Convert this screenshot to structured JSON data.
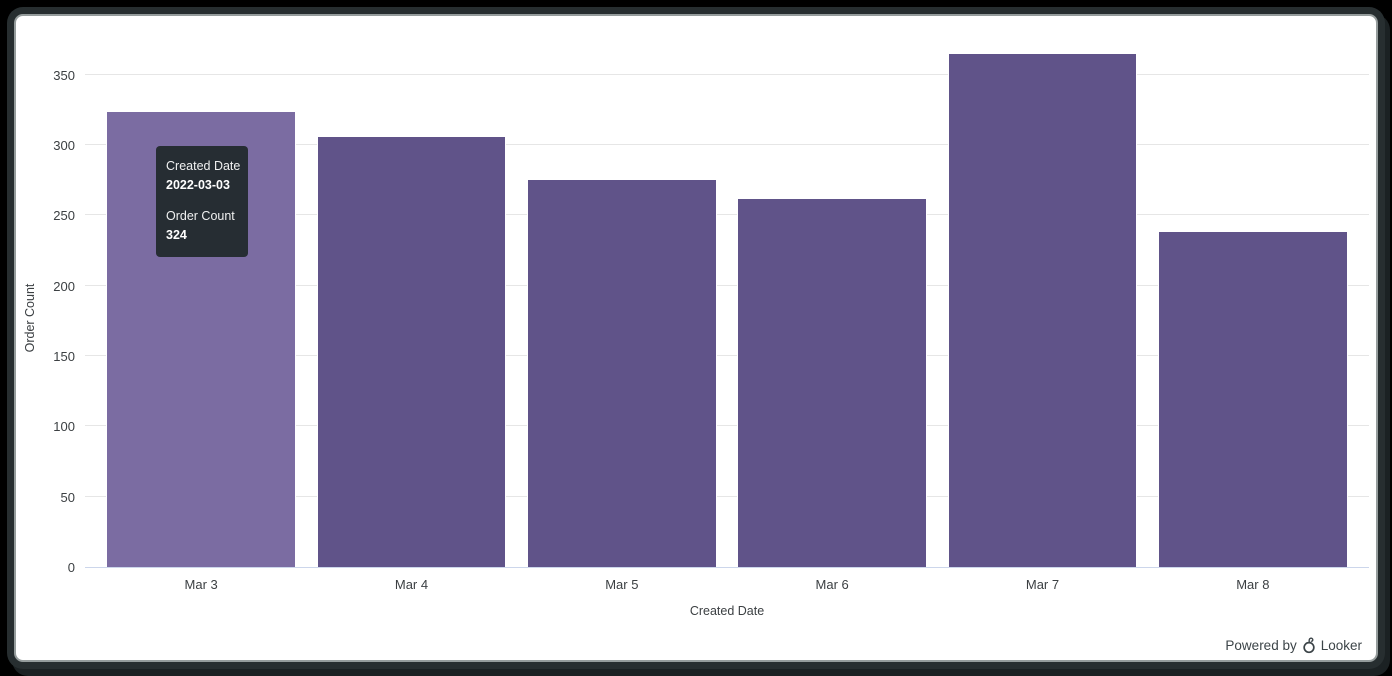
{
  "chart_data": {
    "type": "bar",
    "title": "",
    "categories": [
      "Mar 3",
      "Mar 4",
      "Mar 5",
      "Mar 6",
      "Mar 7",
      "Mar 8"
    ],
    "values": [
      324,
      306,
      276,
      262,
      365,
      239
    ],
    "xlabel": "Created Date",
    "ylabel": "Order Count",
    "ylim": [
      0,
      350
    ],
    "yticks": [
      0,
      50,
      100,
      150,
      200,
      250,
      300,
      350
    ],
    "grid": true,
    "legend": "none",
    "bar_color": "#605389",
    "bar_hover_color": "#7b6ca2",
    "hovered_index": 0,
    "gridline_color": "#e6e6e6",
    "axis_line_color": "#ccd6eb",
    "axis_text_color": "#3c4043"
  },
  "tooltip": {
    "field1_label": "Created Date",
    "field1_value": "2022-03-03",
    "field2_label": "Order Count",
    "field2_value": "324",
    "bg": "#262d33"
  },
  "footer": {
    "powered_by": "Powered by",
    "brand": "Looker"
  }
}
